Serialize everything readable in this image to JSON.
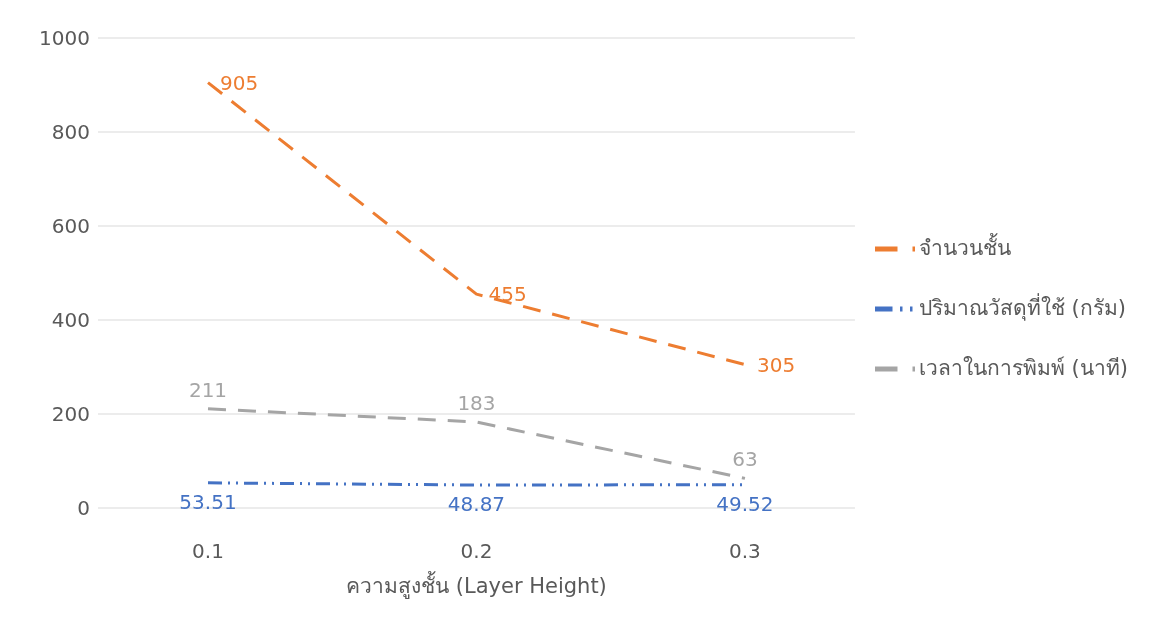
{
  "chart_data": {
    "type": "line",
    "xlabel": "ความสูงชั้น (Layer Height)",
    "categories": [
      "0.1",
      "0.2",
      "0.3"
    ],
    "series": [
      {
        "name": "จำนวนชั้น",
        "color": "#ed7d31",
        "values": [
          905,
          455,
          305
        ],
        "line_style": "dashed"
      },
      {
        "name": "ปริมาณวัสดุที่ใช้ (กรัม)",
        "color": "#4472c4",
        "values": [
          53.51,
          48.87,
          49.52
        ],
        "line_style": "dashdot"
      },
      {
        "name": "เวลาในการพิมพ์ (นาที)",
        "color": "#a5a5a5",
        "values": [
          211,
          183,
          63
        ],
        "line_style": "dashed"
      }
    ],
    "ylim": [
      0,
      1000
    ],
    "yticks": [
      0,
      200,
      400,
      600,
      800,
      1000
    ],
    "grid": "y",
    "legend": "right",
    "marker": "none",
    "data_labels": true
  }
}
